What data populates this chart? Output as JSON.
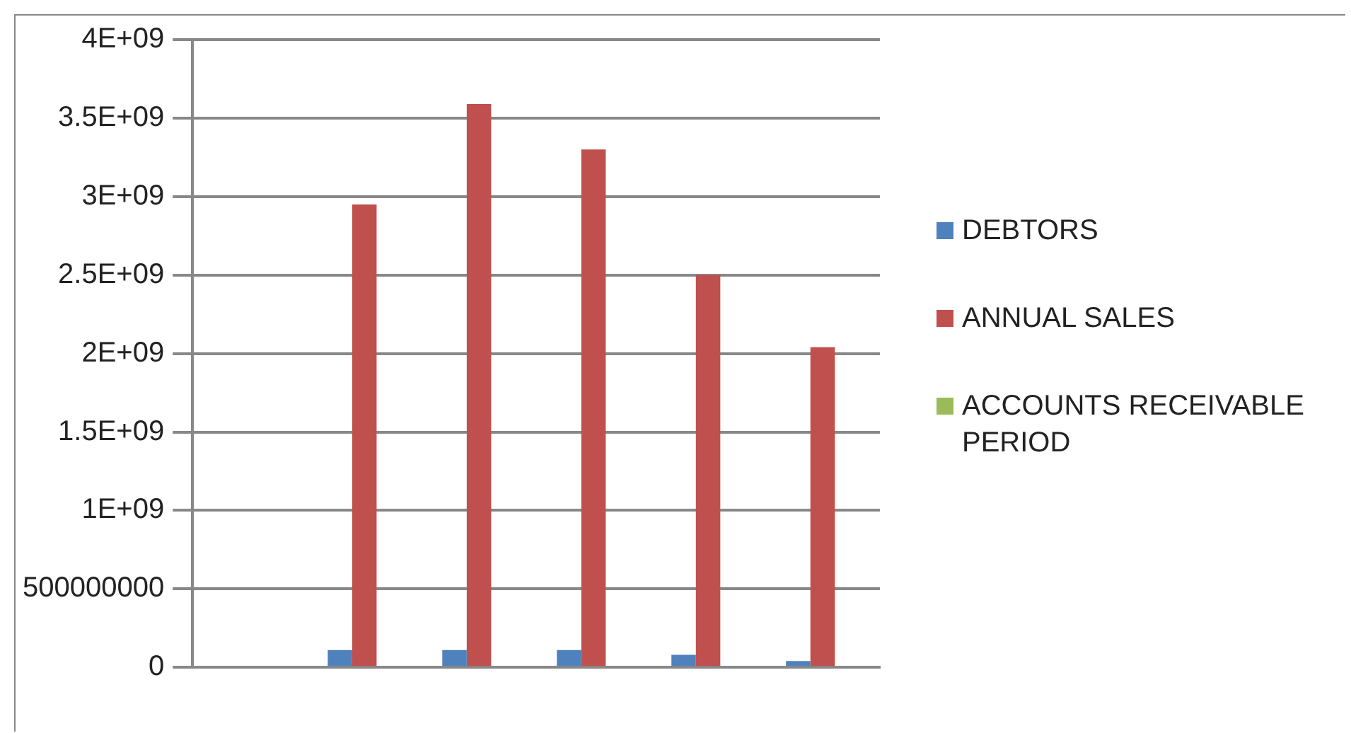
{
  "chart_data": {
    "type": "bar",
    "categories": [
      null,
      null,
      null,
      null,
      null,
      null
    ],
    "series": [
      {
        "name": "DEBTORS",
        "color": "#4f81bd",
        "values": [
          null,
          110000000,
          110000000,
          110000000,
          80000000,
          40000000
        ]
      },
      {
        "name": "ANNUAL SALES",
        "color": "#c0504d",
        "values": [
          null,
          2950000000,
          3590000000,
          3300000000,
          2500000000,
          2040000000
        ]
      },
      {
        "name": "ACCOUNTS RECEIVABLE PERIOD",
        "color": "#9bbb59",
        "values": [
          null,
          0,
          0,
          0,
          0,
          0
        ]
      }
    ],
    "ylim": [
      0,
      4000000000
    ],
    "yticks": [
      {
        "value": 0,
        "label": "0"
      },
      {
        "value": 500000000,
        "label": "500000000"
      },
      {
        "value": 1000000000,
        "label": "1E+09"
      },
      {
        "value": 1500000000,
        "label": "1.5E+09"
      },
      {
        "value": 2000000000,
        "label": "2E+09"
      },
      {
        "value": 2500000000,
        "label": "2.5E+09"
      },
      {
        "value": 3000000000,
        "label": "3E+09"
      },
      {
        "value": 3500000000,
        "label": "3.5E+09"
      },
      {
        "value": 4000000000,
        "label": "4E+09"
      }
    ],
    "grid": "y",
    "legend": "right"
  }
}
